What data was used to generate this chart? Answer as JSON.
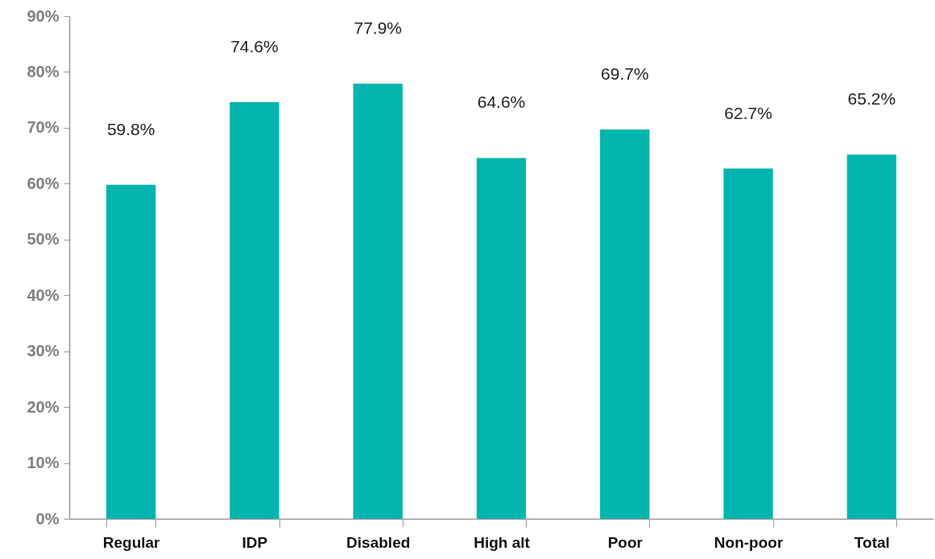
{
  "chart_data": {
    "type": "bar",
    "categories": [
      "Regular",
      "IDP",
      "Disabled",
      "High alt",
      "Poor",
      "Non-poor",
      "Total"
    ],
    "values": [
      59.8,
      74.6,
      77.9,
      64.6,
      69.7,
      62.7,
      65.2
    ],
    "value_labels": [
      "59.8%",
      "74.6%",
      "77.9%",
      "64.6%",
      "69.7%",
      "62.7%",
      "65.2%"
    ],
    "color": "#00b5ad",
    "ylim": [
      0,
      90
    ],
    "yticks": [
      {
        "value": 0,
        "label": "0%"
      },
      {
        "value": 10,
        "label": "10%"
      },
      {
        "value": 20,
        "label": "20%"
      },
      {
        "value": 30,
        "label": "30%"
      },
      {
        "value": 40,
        "label": "40%"
      },
      {
        "value": 50,
        "label": "50%"
      },
      {
        "value": 60,
        "label": "60%"
      },
      {
        "value": 70,
        "label": "70%"
      },
      {
        "value": 80,
        "label": "80%"
      },
      {
        "value": 90,
        "label": "90%"
      }
    ],
    "grid": false
  }
}
